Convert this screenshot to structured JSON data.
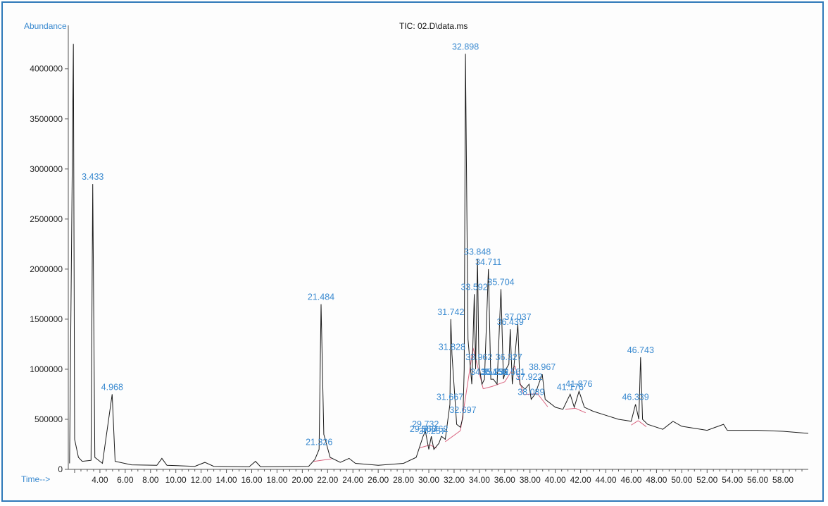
{
  "chart_data": {
    "type": "line",
    "title": "TIC: 02.D\\data.ms",
    "ylabel": "Abundance",
    "xlabel": "Time-->",
    "xlim": [
      1.5,
      60.0
    ],
    "ylim": [
      0,
      4350000
    ],
    "x_ticks": [
      "4.00",
      "6.00",
      "8.00",
      "10.00",
      "12.00",
      "14.00",
      "16.00",
      "18.00",
      "20.00",
      "22.00",
      "24.00",
      "26.00",
      "28.00",
      "30.00",
      "32.00",
      "34.00",
      "36.00",
      "38.00",
      "40.00",
      "42.00",
      "44.00",
      "46.00",
      "48.00",
      "50.00",
      "52.00",
      "54.00",
      "56.00",
      "58.00"
    ],
    "y_ticks": [
      "0",
      "500000",
      "1000000",
      "1500000",
      "2000000",
      "2500000",
      "3000000",
      "3500000",
      "4000000"
    ],
    "series": [
      {
        "values": [
          [
            1.6,
            60000
          ],
          [
            1.9,
            4250000
          ],
          [
            2.0,
            300000
          ],
          [
            2.3,
            120000
          ],
          [
            2.6,
            80000
          ],
          [
            3.3,
            90000
          ],
          [
            3.433,
            2850000
          ],
          [
            3.6,
            120000
          ],
          [
            4.2,
            60000
          ],
          [
            4.968,
            750000
          ],
          [
            5.2,
            80000
          ],
          [
            6.5,
            45000
          ],
          [
            8.5,
            40000
          ],
          [
            8.9,
            110000
          ],
          [
            9.3,
            40000
          ],
          [
            11.5,
            30000
          ],
          [
            12.3,
            70000
          ],
          [
            13.0,
            30000
          ],
          [
            15.8,
            25000
          ],
          [
            16.3,
            80000
          ],
          [
            16.7,
            25000
          ],
          [
            20.5,
            30000
          ],
          [
            21.0,
            100000
          ],
          [
            21.326,
            200000
          ],
          [
            21.484,
            1650000
          ],
          [
            21.7,
            350000
          ],
          [
            22.2,
            120000
          ],
          [
            23.0,
            70000
          ],
          [
            23.7,
            110000
          ],
          [
            24.2,
            60000
          ],
          [
            26.0,
            40000
          ],
          [
            28.0,
            60000
          ],
          [
            29.0,
            120000
          ],
          [
            29.55,
            330000
          ],
          [
            29.732,
            380000
          ],
          [
            30.0,
            200000
          ],
          [
            30.2,
            330000
          ],
          [
            30.4,
            200000
          ],
          [
            30.8,
            260000
          ],
          [
            31.0,
            330000
          ],
          [
            31.3,
            300000
          ],
          [
            31.667,
            650000
          ],
          [
            31.742,
            1500000
          ],
          [
            31.828,
            1150000
          ],
          [
            32.2,
            450000
          ],
          [
            32.5,
            420000
          ],
          [
            32.697,
            520000
          ],
          [
            32.8,
            1000000
          ],
          [
            32.898,
            4150000
          ],
          [
            33.1,
            1300000
          ],
          [
            33.4,
            850000
          ],
          [
            33.592,
            1750000
          ],
          [
            33.7,
            1000000
          ],
          [
            33.848,
            2100000
          ],
          [
            33.962,
            1050000
          ],
          [
            34.2,
            850000
          ],
          [
            34.4,
            900000
          ],
          [
            34.711,
            2000000
          ],
          [
            34.9,
            900000
          ],
          [
            35.1,
            900000
          ],
          [
            35.4,
            850000
          ],
          [
            35.704,
            1800000
          ],
          [
            35.9,
            900000
          ],
          [
            36.1,
            1000000
          ],
          [
            36.327,
            1050000
          ],
          [
            36.439,
            1400000
          ],
          [
            36.6,
            850000
          ],
          [
            37.037,
            1450000
          ],
          [
            37.2,
            850000
          ],
          [
            37.6,
            800000
          ],
          [
            37.922,
            850000
          ],
          [
            38.089,
            700000
          ],
          [
            38.4,
            750000
          ],
          [
            38.967,
            950000
          ],
          [
            39.2,
            700000
          ],
          [
            40.0,
            620000
          ],
          [
            40.6,
            600000
          ],
          [
            41.176,
            750000
          ],
          [
            41.5,
            620000
          ],
          [
            41.876,
            780000
          ],
          [
            42.3,
            620000
          ],
          [
            43.0,
            580000
          ],
          [
            44.0,
            540000
          ],
          [
            45.0,
            500000
          ],
          [
            46.0,
            480000
          ],
          [
            46.339,
            650000
          ],
          [
            46.6,
            500000
          ],
          [
            46.743,
            1120000
          ],
          [
            46.9,
            500000
          ],
          [
            47.3,
            450000
          ],
          [
            48.5,
            400000
          ],
          [
            49.3,
            480000
          ],
          [
            50.0,
            430000
          ],
          [
            52.0,
            390000
          ],
          [
            53.3,
            450000
          ],
          [
            53.6,
            390000
          ],
          [
            56.0,
            390000
          ],
          [
            58.0,
            380000
          ],
          [
            60.0,
            360000
          ]
        ]
      }
    ],
    "peak_labels": [
      {
        "text": "3.433",
        "x": 3.433,
        "y": 2850000
      },
      {
        "text": "4.968",
        "x": 4.968,
        "y": 750000
      },
      {
        "text": "21.484",
        "x": 21.484,
        "y": 1650000
      },
      {
        "text": "21.326",
        "x": 21.326,
        "y": 200000
      },
      {
        "text": "29.732",
        "x": 29.732,
        "y": 380000
      },
      {
        "text": "29.550",
        "x": 29.55,
        "y": 330000
      },
      {
        "text": "30.257",
        "x": 30.257,
        "y": 310000
      },
      {
        "text": "30.462",
        "x": 30.462,
        "y": 330000
      },
      {
        "text": "31.742",
        "x": 31.742,
        "y": 1500000
      },
      {
        "text": "31.828",
        "x": 31.828,
        "y": 1150000
      },
      {
        "text": "31.667",
        "x": 31.667,
        "y": 650000
      },
      {
        "text": "32.697",
        "x": 32.697,
        "y": 520000
      },
      {
        "text": "32.898",
        "x": 32.898,
        "y": 4150000
      },
      {
        "text": "33.848",
        "x": 33.848,
        "y": 2100000
      },
      {
        "text": "34.711",
        "x": 34.711,
        "y": 2000000
      },
      {
        "text": "33.592",
        "x": 33.592,
        "y": 1750000
      },
      {
        "text": "35.704",
        "x": 35.704,
        "y": 1800000
      },
      {
        "text": "37.037",
        "x": 37.037,
        "y": 1450000
      },
      {
        "text": "36.439",
        "x": 36.439,
        "y": 1400000
      },
      {
        "text": "33.962",
        "x": 33.962,
        "y": 1050000
      },
      {
        "text": "36.327",
        "x": 36.327,
        "y": 1050000
      },
      {
        "text": "34.354",
        "x": 34.354,
        "y": 900000
      },
      {
        "text": "35.156",
        "x": 35.156,
        "y": 900000
      },
      {
        "text": "35.252",
        "x": 35.252,
        "y": 900000
      },
      {
        "text": "36.561",
        "x": 36.561,
        "y": 900000
      },
      {
        "text": "38.967",
        "x": 38.967,
        "y": 950000
      },
      {
        "text": "37.922",
        "x": 37.922,
        "y": 850000
      },
      {
        "text": "38.089",
        "x": 38.089,
        "y": 700000
      },
      {
        "text": "41.176",
        "x": 41.176,
        "y": 750000
      },
      {
        "text": "41.876",
        "x": 41.876,
        "y": 780000
      },
      {
        "text": "46.339",
        "x": 46.339,
        "y": 650000
      },
      {
        "text": "46.743",
        "x": 46.743,
        "y": 1120000
      }
    ],
    "colors": {
      "trace": "#1a1a1a",
      "baseline": "#d9627e",
      "label": "#3a8ad0",
      "frame": "#2f79b9"
    },
    "grid": false
  }
}
